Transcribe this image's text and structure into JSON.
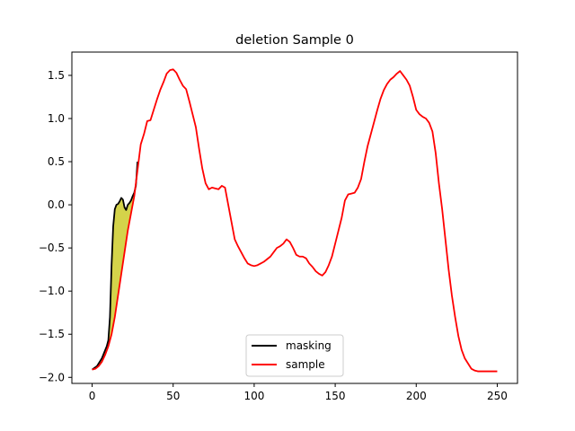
{
  "chart_data": {
    "type": "line",
    "title": "deletion Sample 0",
    "xlabel": "",
    "ylabel": "",
    "xlim": [
      -12.5,
      262.5
    ],
    "ylim": [
      -2.07,
      1.77
    ],
    "xticks": [
      0,
      50,
      100,
      150,
      200,
      250
    ],
    "yticks": [
      -2.0,
      -1.5,
      -1.0,
      -0.5,
      0.0,
      0.5,
      1.0,
      1.5
    ],
    "ytick_labels": [
      "−2.0",
      "−1.5",
      "−1.0",
      "−0.5",
      "0.0",
      "0.5",
      "1.0",
      "1.5"
    ],
    "legend_position": "lower center",
    "fill_color": "#d4d34a",
    "series": [
      {
        "name": "masking",
        "color": "#000000",
        "x": [
          0,
          3,
          6,
          9,
          10,
          11,
          12,
          13,
          14,
          15,
          16,
          17,
          18,
          19,
          20,
          21,
          22,
          23,
          24,
          25,
          26,
          27,
          28
        ],
        "values": [
          -1.91,
          -1.87,
          -1.78,
          -1.64,
          -1.57,
          -1.3,
          -0.7,
          -0.25,
          -0.05,
          0.0,
          0.01,
          0.04,
          0.08,
          0.06,
          -0.03,
          -0.06,
          0.0,
          0.02,
          0.05,
          0.1,
          0.14,
          0.22,
          0.5
        ]
      },
      {
        "name": "sample",
        "color": "#ff0000",
        "x": [
          0,
          2,
          4,
          6,
          8,
          10,
          12,
          14,
          16,
          18,
          20,
          22,
          24,
          26,
          28,
          30,
          32,
          34,
          36,
          38,
          40,
          42,
          44,
          46,
          48,
          50,
          52,
          54,
          56,
          58,
          60,
          62,
          64,
          66,
          68,
          70,
          72,
          74,
          76,
          78,
          80,
          82,
          84,
          86,
          88,
          90,
          92,
          94,
          96,
          98,
          100,
          102,
          104,
          106,
          108,
          110,
          112,
          114,
          116,
          118,
          120,
          122,
          124,
          126,
          128,
          130,
          132,
          134,
          136,
          138,
          140,
          142,
          144,
          146,
          148,
          150,
          152,
          154,
          156,
          158,
          160,
          162,
          164,
          166,
          168,
          170,
          172,
          174,
          176,
          178,
          180,
          182,
          184,
          186,
          188,
          190,
          192,
          194,
          196,
          198,
          200,
          202,
          204,
          206,
          208,
          210,
          212,
          214,
          216,
          218,
          220,
          222,
          224,
          226,
          228,
          230,
          232,
          234,
          236,
          238,
          240,
          242,
          244,
          246,
          248,
          250
        ],
        "values": [
          -1.91,
          -1.9,
          -1.87,
          -1.82,
          -1.74,
          -1.64,
          -1.5,
          -1.3,
          -1.05,
          -0.8,
          -0.55,
          -0.3,
          -0.1,
          0.1,
          0.4,
          0.7,
          0.82,
          0.97,
          0.98,
          1.1,
          1.22,
          1.33,
          1.42,
          1.52,
          1.56,
          1.57,
          1.53,
          1.45,
          1.38,
          1.34,
          1.2,
          1.05,
          0.9,
          0.65,
          0.42,
          0.25,
          0.18,
          0.2,
          0.19,
          0.18,
          0.22,
          0.2,
          0.0,
          -0.2,
          -0.4,
          -0.48,
          -0.55,
          -0.62,
          -0.68,
          -0.7,
          -0.71,
          -0.7,
          -0.68,
          -0.66,
          -0.63,
          -0.6,
          -0.55,
          -0.5,
          -0.48,
          -0.45,
          -0.4,
          -0.43,
          -0.5,
          -0.58,
          -0.6,
          -0.6,
          -0.62,
          -0.68,
          -0.72,
          -0.77,
          -0.8,
          -0.82,
          -0.78,
          -0.7,
          -0.6,
          -0.45,
          -0.3,
          -0.15,
          0.05,
          0.12,
          0.13,
          0.14,
          0.2,
          0.3,
          0.5,
          0.68,
          0.82,
          0.96,
          1.1,
          1.23,
          1.33,
          1.4,
          1.45,
          1.48,
          1.52,
          1.55,
          1.5,
          1.45,
          1.38,
          1.25,
          1.1,
          1.05,
          1.02,
          1.0,
          0.95,
          0.85,
          0.6,
          0.25,
          -0.05,
          -0.4,
          -0.75,
          -1.05,
          -1.3,
          -1.52,
          -1.68,
          -1.78,
          -1.84,
          -1.9,
          -1.92,
          -1.93,
          -1.93,
          -1.93,
          -1.93,
          -1.93,
          -1.93,
          -1.93
        ]
      }
    ]
  }
}
